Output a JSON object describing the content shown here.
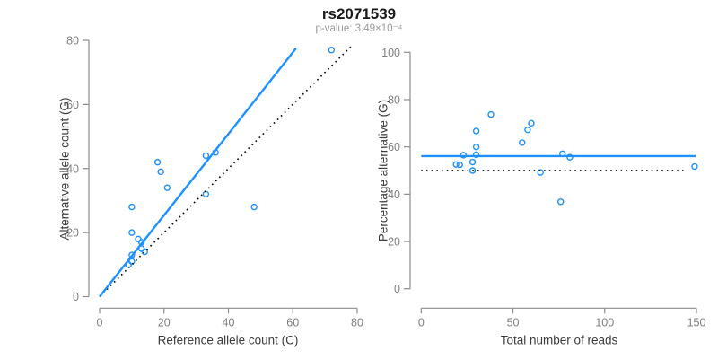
{
  "header": {
    "title": "rs2071539",
    "subtitle": "p-value: 3.49×10⁻⁴"
  },
  "colors": {
    "accent_blue": "#1E90FF",
    "reference_black": "#000000",
    "axis_gray": "#8c8c8c",
    "tick_label_gray": "#7f7f7f",
    "axis_title_gray": "#3c3c3c",
    "subtitle_gray": "#9a9a9a"
  },
  "chart_data": [
    {
      "type": "scatter",
      "panel": "left",
      "xlabel": "Reference allele count (C)",
      "ylabel": "Alternative allele count (G)",
      "xlim": [
        0,
        80
      ],
      "ylim": [
        0,
        80
      ],
      "xticks": [
        0,
        20,
        40,
        60,
        80
      ],
      "yticks": [
        0,
        20,
        40,
        60,
        80
      ],
      "grid": false,
      "point_color": "#1E90FF",
      "points": [
        [
          9,
          10
        ],
        [
          10,
          11
        ],
        [
          10,
          13
        ],
        [
          13,
          15
        ],
        [
          14,
          14
        ],
        [
          13,
          17
        ],
        [
          12,
          18
        ],
        [
          10,
          20
        ],
        [
          10,
          28
        ],
        [
          21,
          34
        ],
        [
          19,
          39
        ],
        [
          18,
          42
        ],
        [
          33,
          32
        ],
        [
          48,
          28
        ],
        [
          33,
          44
        ],
        [
          36,
          45
        ],
        [
          72,
          77
        ]
      ],
      "fit_line": {
        "meaning": "regression fit",
        "style": "solid",
        "color": "#1E90FF",
        "x": [
          0,
          61
        ],
        "y": [
          0,
          77.5
        ]
      },
      "ref_line": {
        "meaning": "identity y = x",
        "style": "dotted",
        "color": "#000000",
        "x": [
          0,
          78
        ],
        "y": [
          0,
          78
        ]
      }
    },
    {
      "type": "scatter",
      "panel": "right",
      "xlabel": "Total number of reads",
      "ylabel": "Percentage alternative (G)",
      "xlim": [
        0,
        150
      ],
      "ylim": [
        0,
        100
      ],
      "xticks": [
        0,
        50,
        100,
        150
      ],
      "yticks": [
        0,
        20,
        40,
        60,
        80,
        100
      ],
      "grid": false,
      "point_color": "#1E90FF",
      "points": [
        [
          19,
          52.6
        ],
        [
          21,
          52.4
        ],
        [
          23,
          56.5
        ],
        [
          28,
          53.6
        ],
        [
          28,
          50
        ],
        [
          30,
          56.7
        ],
        [
          30,
          60
        ],
        [
          30,
          66.7
        ],
        [
          38,
          73.7
        ],
        [
          55,
          61.8
        ],
        [
          58,
          67.2
        ],
        [
          60,
          70
        ],
        [
          65,
          49.2
        ],
        [
          76,
          36.8
        ],
        [
          77,
          57.1
        ],
        [
          81,
          55.6
        ],
        [
          149,
          51.7
        ]
      ],
      "fit_line": {
        "meaning": "mean percentage",
        "style": "solid",
        "color": "#1E90FF",
        "x": [
          0,
          149.5
        ],
        "y": [
          56.1,
          56.1
        ]
      },
      "ref_line": {
        "meaning": "50% reference",
        "style": "dotted",
        "color": "#000000",
        "x": [
          0,
          144
        ],
        "y": [
          50,
          50
        ]
      }
    }
  ]
}
